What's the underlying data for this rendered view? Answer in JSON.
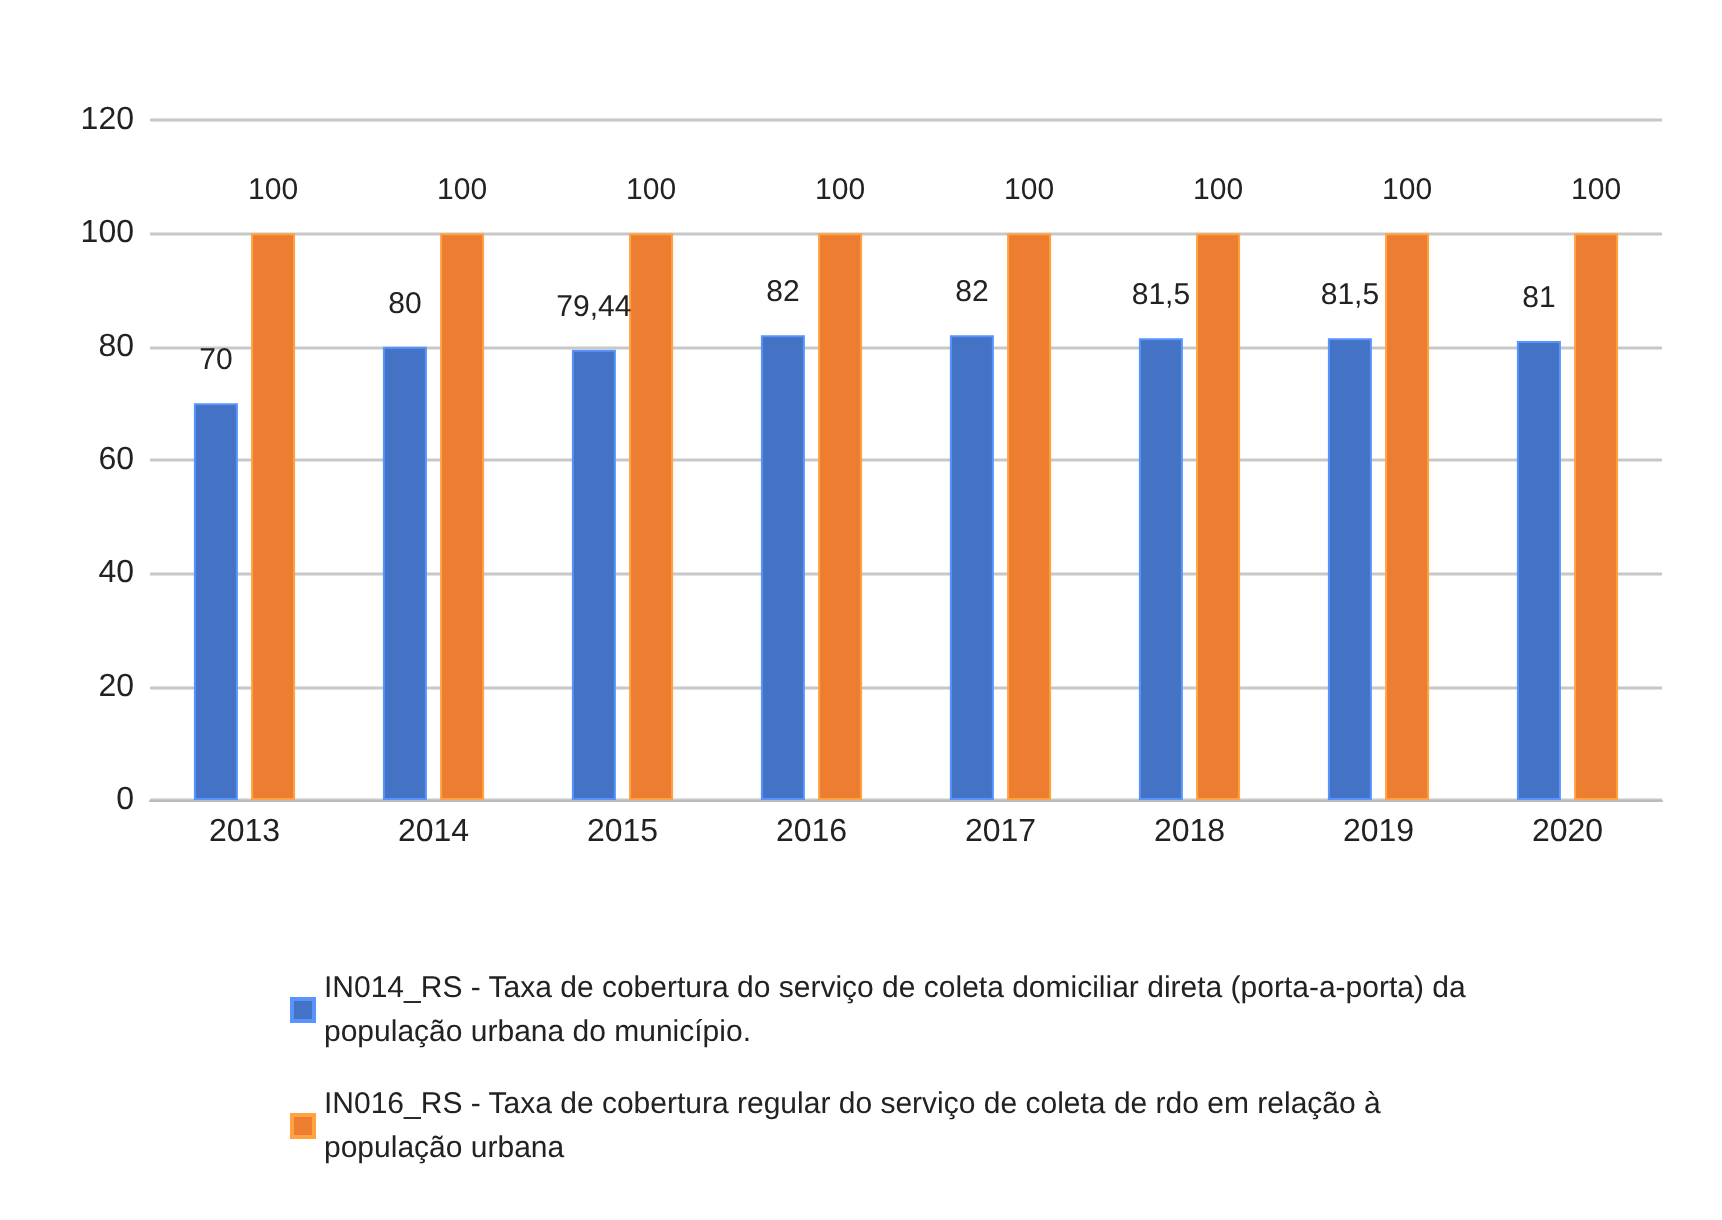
{
  "chart_data": {
    "type": "bar",
    "categories": [
      "2013",
      "2014",
      "2015",
      "2016",
      "2017",
      "2018",
      "2019",
      "2020"
    ],
    "series": [
      {
        "name": "IN014_RS - Taxa de cobertura do serviço de coleta domiciliar direta (porta-a-porta) da população urbana do município.",
        "color": "#4472c4",
        "values": [
          70,
          80,
          79.44,
          82,
          82,
          81.5,
          81.5,
          81
        ],
        "value_labels": [
          "70",
          "80",
          "79,44",
          "82",
          "82",
          "81,5",
          "81,5",
          "81"
        ]
      },
      {
        "name": "IN016_RS - Taxa de cobertura regular do serviço de coleta de rdo em relação à população urbana",
        "color": "#ed7d31",
        "values": [
          100,
          100,
          100,
          100,
          100,
          100,
          100,
          100
        ],
        "value_labels": [
          "100",
          "100",
          "100",
          "100",
          "100",
          "100",
          "100",
          "100"
        ]
      }
    ],
    "ylim": [
      0,
      120
    ],
    "yticks": [
      0,
      20,
      40,
      60,
      80,
      100,
      120
    ],
    "grid": "y",
    "legend": "bottom"
  }
}
